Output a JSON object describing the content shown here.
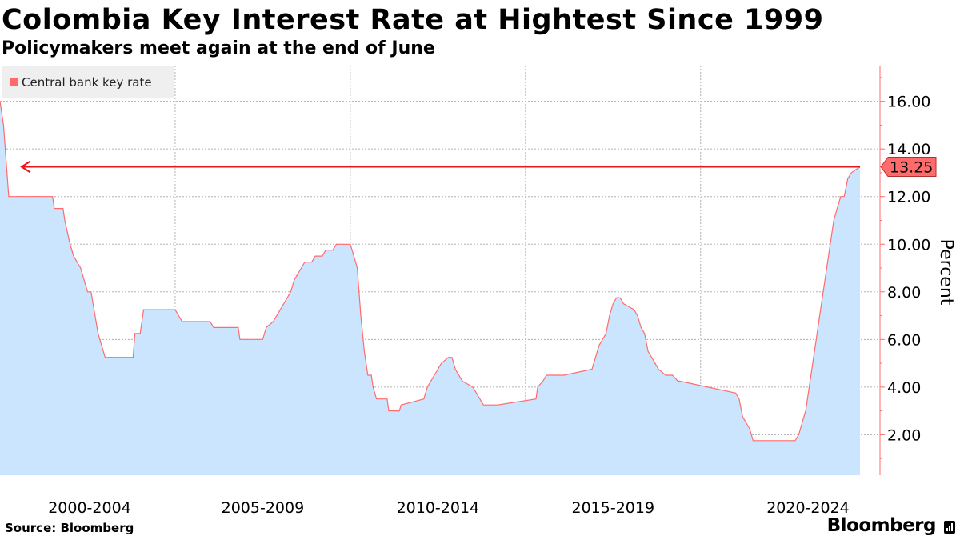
{
  "header": {
    "title": "Colombia Key Interest Rate at Hightest Since 1999",
    "subtitle": "Policymakers meet again at the end of June"
  },
  "footer": {
    "source": "Source: Bloomberg",
    "brand": "Bloomberg"
  },
  "icons": {
    "brand_icon": "bar-chart-icon"
  },
  "colors": {
    "area_fill": "#cce5ff",
    "series_line": "#ff6b6b",
    "arrow": "#e8161b",
    "label_bg": "#ff6b6b",
    "axis": "#ff6b6b",
    "grid": "#b0b0b0",
    "legend_bg": "#efefef"
  },
  "chart_data": {
    "type": "area",
    "title": "Colombia Key Interest Rate at Hightest Since 1999",
    "subtitle": "Policymakers meet again at the end of June",
    "ylabel": "Percent",
    "ylim": [
      0.3,
      17.5
    ],
    "y_ticks": [
      "2.00",
      "4.00",
      "6.00",
      "8.00",
      "10.00",
      "12.00",
      "14.00",
      "16.00"
    ],
    "x_range": [
      1999.0,
      2023.55
    ],
    "x_period_labels": [
      "2000-2004",
      "2005-2009",
      "2010-2014",
      "2015-2019",
      "2020-2024"
    ],
    "legend": {
      "entries": [
        "Central bank key rate"
      ],
      "position": "top-left"
    },
    "grid": true,
    "annotation": {
      "type": "arrow",
      "value": 13.25,
      "direction": "left",
      "label": "13.25"
    },
    "series": [
      {
        "name": "Central bank key rate",
        "x": [
          1999.0,
          1999.1,
          1999.25,
          2000.5,
          2000.55,
          2000.8,
          2000.85,
          2001.0,
          2001.1,
          2001.3,
          2001.5,
          2001.6,
          2001.8,
          2001.85,
          2002.0,
          2002.1,
          2002.2,
          2002.8,
          2002.85,
          2003.0,
          2003.1,
          2003.2,
          2004.0,
          2004.2,
          2004.25,
          2005.0,
          2005.1,
          2005.8,
          2005.85,
          2006.5,
          2006.6,
          2006.8,
          2006.9,
          2007.0,
          2007.1,
          2007.3,
          2007.4,
          2007.6,
          2007.7,
          2007.9,
          2008.0,
          2008.2,
          2008.3,
          2008.5,
          2008.6,
          2009.0,
          2009.1,
          2009.2,
          2009.3,
          2009.4,
          2009.5,
          2009.6,
          2009.65,
          2009.75,
          2010.0,
          2010.05,
          2010.1,
          2010.4,
          2010.45,
          2011.1,
          2011.2,
          2011.3,
          2011.4,
          2011.5,
          2011.6,
          2011.8,
          2011.9,
          2012.0,
          2012.2,
          2012.5,
          2012.6,
          2012.8,
          2013.0,
          2013.1,
          2013.2,
          2014.3,
          2014.35,
          2014.5,
          2014.6,
          2014.8,
          2015.0,
          2015.1,
          2015.9,
          2016.0,
          2016.1,
          2016.2,
          2016.3,
          2016.4,
          2016.5,
          2016.6,
          2016.7,
          2016.8,
          2017.1,
          2017.2,
          2017.3,
          2017.4,
          2017.5,
          2017.6,
          2017.7,
          2017.8,
          2018.0,
          2018.2,
          2018.35,
          2018.4,
          2020.0,
          2020.1,
          2020.2,
          2020.3,
          2020.4,
          2020.5,
          2020.6,
          2020.7,
          2021.7,
          2021.8,
          2021.9,
          2022.0,
          2022.1,
          2022.2,
          2022.3,
          2022.4,
          2022.5,
          2022.6,
          2022.7,
          2022.8,
          2022.9,
          2023.0,
          2023.1,
          2023.2,
          2023.3,
          2023.55
        ],
        "values": [
          16.0,
          15.0,
          12.0,
          12.0,
          11.5,
          11.5,
          11.0,
          10.0,
          9.5,
          9.0,
          8.0,
          8.0,
          6.25,
          6.0,
          5.25,
          5.25,
          5.25,
          5.25,
          6.25,
          6.25,
          7.25,
          7.25,
          7.25,
          6.75,
          6.75,
          6.75,
          6.5,
          6.5,
          6.0,
          6.0,
          6.5,
          6.75,
          7.0,
          7.25,
          7.5,
          8.0,
          8.5,
          9.0,
          9.25,
          9.25,
          9.5,
          9.5,
          9.75,
          9.75,
          10.0,
          10.0,
          9.5,
          9.0,
          7.0,
          5.5,
          4.5,
          4.5,
          4.0,
          3.5,
          3.5,
          3.5,
          3.0,
          3.0,
          3.25,
          3.5,
          4.0,
          4.25,
          4.5,
          4.75,
          5.0,
          5.25,
          5.25,
          4.75,
          4.25,
          4.0,
          3.75,
          3.25,
          3.25,
          3.25,
          3.25,
          3.5,
          4.0,
          4.25,
          4.5,
          4.5,
          4.5,
          4.5,
          4.75,
          5.25,
          5.75,
          6.0,
          6.25,
          7.0,
          7.5,
          7.75,
          7.75,
          7.5,
          7.25,
          7.0,
          6.5,
          6.25,
          5.5,
          5.25,
          5.0,
          4.75,
          4.5,
          4.5,
          4.25,
          4.25,
          3.75,
          3.5,
          2.75,
          2.5,
          2.25,
          1.75,
          1.75,
          1.75,
          1.75,
          2.0,
          2.5,
          3.0,
          4.0,
          5.0,
          6.0,
          7.0,
          8.0,
          9.0,
          10.0,
          11.0,
          11.5,
          12.0,
          12.0,
          12.75,
          13.0,
          13.25
        ]
      }
    ]
  }
}
